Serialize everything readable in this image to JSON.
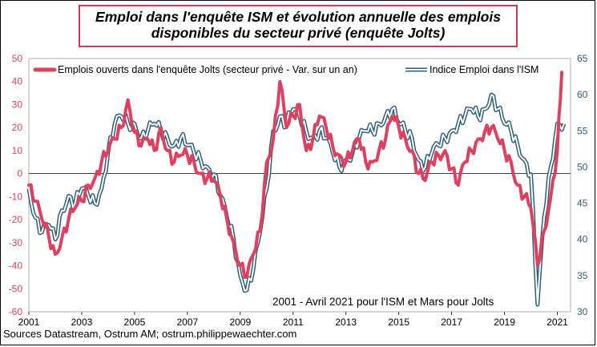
{
  "title": {
    "line1": "Emploi dans l'enquête ISM et évolution annuelle des emplois",
    "line2": "disponibles du secteur privé (enquête Jolts)"
  },
  "source": "Sources Datastream,  Ostrum AM; ostrum.philippewaechter.com",
  "annotation": "2001 - Avril 2021 pour l'ISM  et Mars pour Jolts",
  "colors": {
    "jolts": "#e0405f",
    "ism": "#2e5f7a",
    "left_axis": "#e0405f",
    "right_axis": "#2e5f7a",
    "title_border": "#d23a5a"
  },
  "chart_data": {
    "type": "line",
    "legend_position": "top",
    "x_axis": {
      "tick_labels": [
        "2001",
        "2003",
        "2005",
        "2007",
        "2009",
        "2011",
        "2013",
        "2015",
        "2017",
        "2019",
        "2021"
      ],
      "range": [
        2001,
        2021.5
      ]
    },
    "y_left": {
      "tick_labels": [
        "-60",
        "-50",
        "-40",
        "-30",
        "-20",
        "-10",
        "0",
        "10",
        "20",
        "30",
        "40",
        "50"
      ],
      "range": [
        -60,
        50
      ]
    },
    "y_right": {
      "tick_labels": [
        "30",
        "35",
        "40",
        "45",
        "50",
        "55",
        "60",
        "65"
      ],
      "range": [
        30,
        65
      ]
    },
    "series": [
      {
        "name": "Emplois ouverts dans l'enquête Jolts (secteur privé - Var. sur un an)",
        "axis": "left",
        "x": [
          2001.0,
          2001.25,
          2001.5,
          2001.75,
          2002.0,
          2002.25,
          2002.5,
          2002.75,
          2003.0,
          2003.25,
          2003.5,
          2003.75,
          2004.0,
          2004.25,
          2004.5,
          2004.75,
          2005.0,
          2005.25,
          2005.5,
          2005.75,
          2006.0,
          2006.25,
          2006.5,
          2006.75,
          2007.0,
          2007.25,
          2007.5,
          2007.75,
          2008.0,
          2008.25,
          2008.5,
          2008.75,
          2009.0,
          2009.25,
          2009.5,
          2009.75,
          2010.0,
          2010.25,
          2010.5,
          2010.75,
          2011.0,
          2011.25,
          2011.5,
          2011.75,
          2012.0,
          2012.25,
          2012.5,
          2012.75,
          2013.0,
          2013.25,
          2013.5,
          2013.75,
          2014.0,
          2014.25,
          2014.5,
          2014.75,
          2015.0,
          2015.25,
          2015.5,
          2015.75,
          2016.0,
          2016.25,
          2016.5,
          2016.75,
          2017.0,
          2017.25,
          2017.5,
          2017.75,
          2018.0,
          2018.25,
          2018.5,
          2018.75,
          2019.0,
          2019.25,
          2019.5,
          2019.75,
          2020.0,
          2020.25,
          2020.5,
          2020.75,
          2021.0,
          2021.17
        ],
        "y": [
          -5,
          -12,
          -20,
          -27,
          -35,
          -28,
          -20,
          -15,
          -12,
          -5,
          -2,
          5,
          10,
          15,
          20,
          32,
          18,
          12,
          15,
          10,
          20,
          10,
          5,
          8,
          8,
          5,
          0,
          -2,
          -3,
          -10,
          -20,
          -30,
          -40,
          -45,
          -35,
          -25,
          5,
          15,
          40,
          20,
          25,
          30,
          10,
          15,
          25,
          20,
          12,
          8,
          5,
          10,
          15,
          5,
          5,
          10,
          15,
          25,
          20,
          15,
          10,
          0,
          -3,
          5,
          8,
          10,
          2,
          -5,
          5,
          10,
          15,
          18,
          20,
          15,
          10,
          5,
          -5,
          -10,
          -15,
          -40,
          -25,
          -10,
          10,
          44
        ]
      },
      {
        "name": "Indice Emploi dans l'ISM",
        "axis": "right",
        "x": [
          2001.0,
          2001.25,
          2001.5,
          2001.75,
          2002.0,
          2002.25,
          2002.5,
          2002.75,
          2003.0,
          2003.25,
          2003.5,
          2003.75,
          2004.0,
          2004.25,
          2004.5,
          2004.75,
          2005.0,
          2005.25,
          2005.5,
          2005.75,
          2006.0,
          2006.25,
          2006.5,
          2006.75,
          2007.0,
          2007.25,
          2007.5,
          2007.75,
          2008.0,
          2008.25,
          2008.5,
          2008.75,
          2009.0,
          2009.25,
          2009.5,
          2009.75,
          2010.0,
          2010.25,
          2010.5,
          2010.75,
          2011.0,
          2011.25,
          2011.5,
          2011.75,
          2012.0,
          2012.25,
          2012.5,
          2012.75,
          2013.0,
          2013.25,
          2013.5,
          2013.75,
          2014.0,
          2014.25,
          2014.5,
          2014.75,
          2015.0,
          2015.25,
          2015.5,
          2015.75,
          2016.0,
          2016.25,
          2016.5,
          2016.75,
          2017.0,
          2017.25,
          2017.5,
          2017.75,
          2018.0,
          2018.25,
          2018.5,
          2018.75,
          2019.0,
          2019.25,
          2019.5,
          2019.75,
          2020.0,
          2020.25,
          2020.5,
          2020.75,
          2021.0,
          2021.25
        ],
        "y": [
          47,
          43,
          41,
          42,
          40,
          44,
          46,
          45,
          47,
          46,
          45,
          47,
          52,
          56,
          57,
          56,
          56,
          54,
          55,
          56,
          55,
          54,
          53,
          54,
          53,
          52,
          51,
          50,
          49,
          46,
          43,
          40,
          35,
          33,
          36,
          41,
          47,
          55,
          57,
          56,
          58,
          57,
          55,
          54,
          55,
          54,
          52,
          50,
          51,
          52,
          54,
          55,
          55,
          56,
          57,
          58,
          56,
          55,
          54,
          51,
          50,
          52,
          53,
          54,
          55,
          56,
          57,
          58,
          57,
          58,
          60,
          58,
          56,
          55,
          53,
          51,
          49,
          31,
          43,
          50,
          56,
          56
        ]
      }
    ]
  }
}
